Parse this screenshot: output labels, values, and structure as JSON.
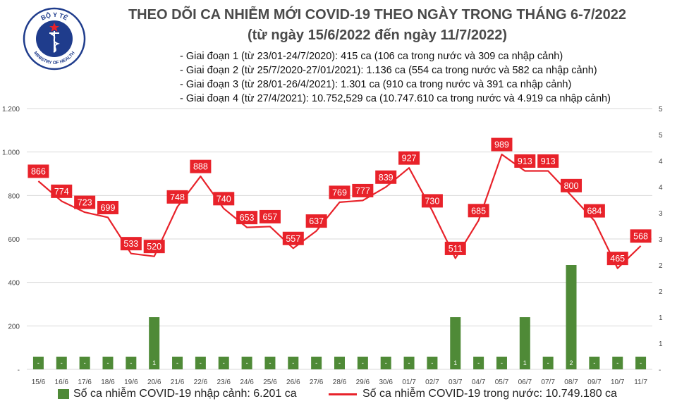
{
  "chart_data": {
    "type": "bar+line",
    "title": "THEO DÕI CA NHIỄM MỚI COVID-19 THEO NGÀY TRONG THÁNG 6-7/2022",
    "subtitle": "(từ ngày 15/6/2022 đến ngày 11/7/2022)",
    "categories": [
      "15/6",
      "16/6",
      "17/6",
      "18/6",
      "19/6",
      "20/6",
      "21/6",
      "22/6",
      "23/6",
      "24/6",
      "25/6",
      "26/6",
      "27/6",
      "28/6",
      "29/6",
      "30/6",
      "01/7",
      "02/7",
      "03/7",
      "04/7",
      "05/7",
      "06/7",
      "07/7",
      "08/7",
      "09/7",
      "10/7",
      "11/7"
    ],
    "series": [
      {
        "name": "Số ca nhiễm COVID-19 nhập cảnh: 6.201 ca",
        "axis": "right",
        "type": "bar",
        "values": [
          0,
          0,
          0,
          0,
          0,
          1,
          0,
          0,
          0,
          0,
          0,
          0,
          0,
          0,
          0,
          0,
          0,
          0,
          1,
          0,
          0,
          1,
          0,
          2,
          0,
          0,
          0
        ],
        "labels": [
          "-",
          "-",
          "-",
          "-",
          "-",
          "1",
          "-",
          "-",
          "-",
          "-",
          "-",
          "-",
          "-",
          "-",
          "-",
          "-",
          "-",
          "-",
          "1",
          "-",
          "-",
          "1",
          "-",
          "2",
          "-",
          "-",
          "-"
        ]
      },
      {
        "name": "Số ca nhiễm COVID-19 trong nước: 10.749.180 ca",
        "axis": "left",
        "type": "line",
        "values": [
          866,
          774,
          723,
          699,
          533,
          520,
          748,
          888,
          740,
          653,
          657,
          557,
          637,
          769,
          777,
          839,
          927,
          730,
          511,
          685,
          989,
          913,
          913,
          800,
          684,
          465,
          568
        ]
      }
    ],
    "left_axis": {
      "min": 0,
      "max": 1200,
      "ticks": [
        0,
        200,
        400,
        600,
        800,
        1000,
        1200
      ],
      "tick_labels": [
        "-",
        "200",
        "400",
        "600",
        "800",
        "1.000",
        "1.200"
      ]
    },
    "right_axis": {
      "min": 0,
      "max": 5,
      "tick_labels": [
        "-",
        "1",
        "1",
        "2",
        "2",
        "3",
        "3",
        "4",
        "4",
        "5",
        "5"
      ]
    },
    "grid": true,
    "legend": "bottom"
  },
  "stages": [
    "- Giai đoạn 1 (từ 23/01-24/7/2020): 415 ca (106 ca trong nước và 309 ca nhập cảnh)",
    "- Giai đoạn 2 (từ 25/7/2020-27/01/2021): 1.136 ca (554 ca trong nước và 582 ca nhập cảnh)",
    "- Giai đoạn 3 (từ 28/01-26/4/2021): 1.301 ca (910 ca trong nước và 391 ca nhập cảnh)",
    "- Giai đoạn 4 (từ 27/4/2021): 10.752,529 ca (10.747.610 ca trong nước và 4.919 ca nhập cảnh)"
  ],
  "logo": {
    "top_text": "BỘ Y TẾ",
    "bottom_text": "MINISTRY OF HEALTH",
    "icon": "caduceus-icon"
  },
  "colors": {
    "bar": "#4f8a37",
    "line": "#e8222a",
    "label_bg": "#e8222a",
    "grid": "#d9d9d9"
  }
}
